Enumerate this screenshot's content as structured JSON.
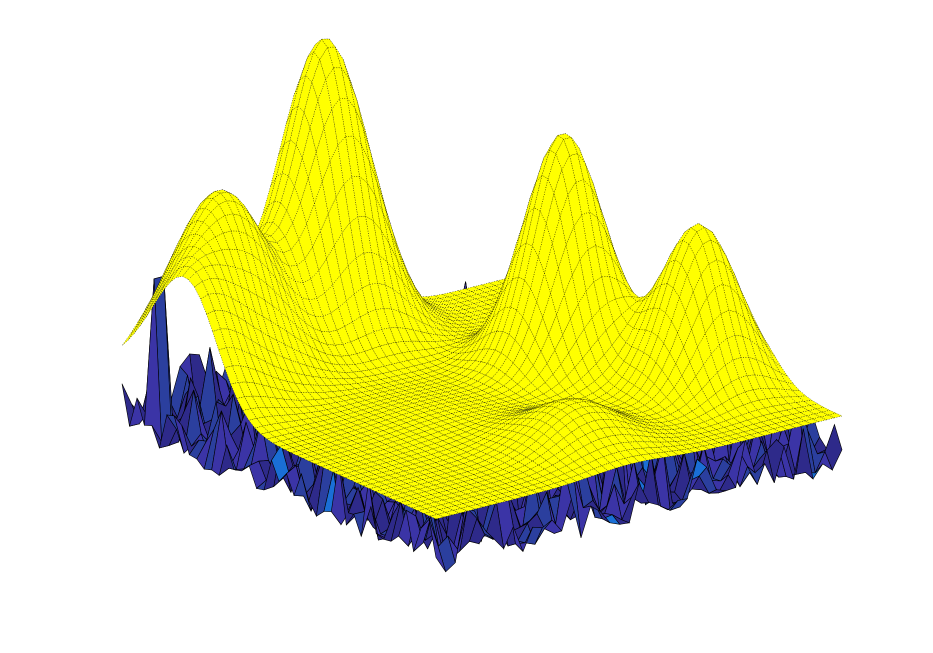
{
  "chart_data": {
    "type": "surface3d",
    "title": "",
    "xlabel": "",
    "ylabel": "",
    "zlabel": "",
    "axes_visible": false,
    "grid": false,
    "legend": "none",
    "series": [
      {
        "style": "smooth surface, dotted black mesh",
        "face_color": "#ffff00",
        "edge_color": "#000000",
        "x_range": [
          0,
          1
        ],
        "y_range": [
          0,
          1
        ],
        "peaks": [
          {
            "x": 0.0,
            "y": 0.78,
            "z": 0.46,
            "width": 0.09
          },
          {
            "x": 0.17,
            "y": 0.9,
            "z": 0.66,
            "width": 0.1
          },
          {
            "x": 0.47,
            "y": 0.96,
            "z": 1.0,
            "width": 0.09
          },
          {
            "x": 0.74,
            "y": 0.55,
            "z": 0.82,
            "width": 0.08
          },
          {
            "x": 0.88,
            "y": 0.3,
            "z": 0.62,
            "width": 0.08
          },
          {
            "x": 0.48,
            "y": 0.18,
            "z": 0.28,
            "width": 0.09
          },
          {
            "x": 0.36,
            "y": 0.45,
            "z": 0.18,
            "width": 0.12
          }
        ],
        "baseline_z": 0.16
      },
      {
        "style": "noisy faceted surface",
        "face_colors": [
          "#2e2a8a",
          "#3b34a6",
          "#2b3f9e",
          "#1a6fd6"
        ],
        "edge_color": "#000000",
        "x_range": [
          0,
          1
        ],
        "y_range": [
          0,
          1
        ],
        "z_range": [
          0.0,
          0.25
        ],
        "spikes": [
          {
            "x": 0.03,
            "y": 0.93,
            "z": 0.46
          },
          {
            "x": 0.52,
            "y": 0.1,
            "z": 0.34
          }
        ]
      }
    ],
    "view": {
      "azimuth": -37.5,
      "elevation": 30
    }
  }
}
